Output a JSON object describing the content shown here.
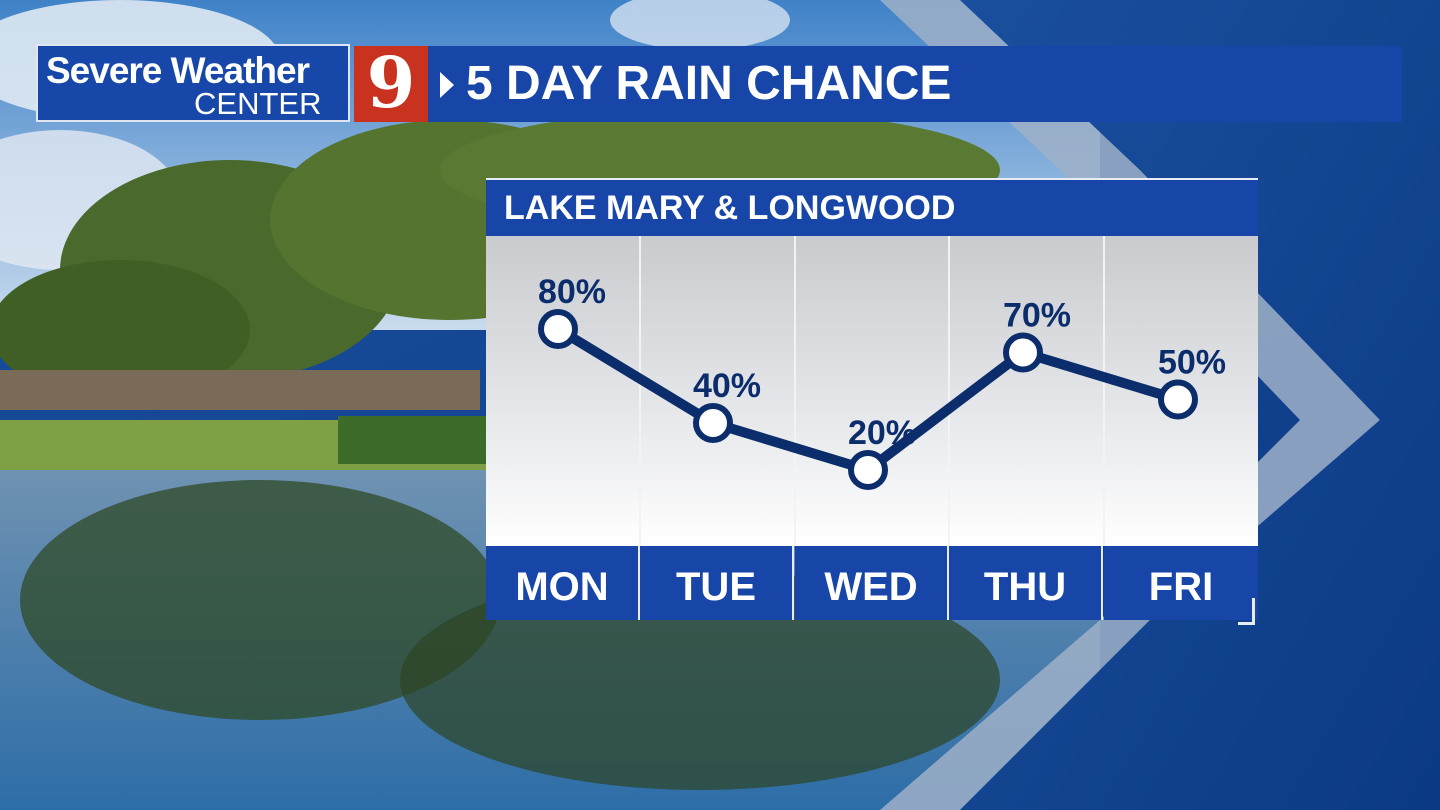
{
  "banner": {
    "logo_line1": "Severe Weather",
    "logo_line2": "CENTER",
    "channel_number": "9",
    "title": "5 DAY RAIN CHANCE"
  },
  "colors": {
    "banner_blue": "#1746a8",
    "logo_red": "#c8321e",
    "line_navy": "#0b2d6b",
    "background_blue": "#0d3f8c"
  },
  "chart_data": {
    "type": "line",
    "title": "LAKE MARY & LONGWOOD",
    "categories": [
      "MON",
      "TUE",
      "WED",
      "THU",
      "FRI"
    ],
    "values": [
      80,
      40,
      20,
      70,
      50
    ],
    "labels": [
      "80%",
      "40%",
      "20%",
      "70%",
      "50%"
    ],
    "grid": "vertical",
    "marker": "hollow-circle"
  }
}
